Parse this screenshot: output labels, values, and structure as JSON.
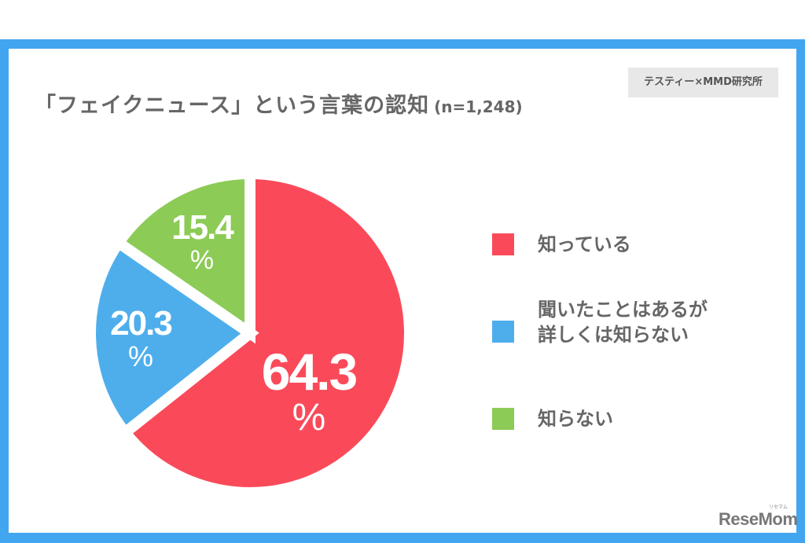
{
  "title": {
    "main": "「フェイクニュース」という言葉の認知",
    "sample": "(n=1,248)"
  },
  "source": "テスティー×MMD研究所",
  "logo": {
    "text": "ReseMom",
    "ruby": "リセマム"
  },
  "colors": {
    "frame": "#42a5f0",
    "know": "#fa4a5a",
    "heard": "#4eaeec",
    "dont_know": "#8ccb56",
    "text": "#666666"
  },
  "labels": {
    "know_value": "64.3",
    "heard_value": "20.3",
    "dont_know_value": "15.4",
    "percent": "%"
  },
  "legend": [
    {
      "label": "知っている",
      "color": "#fa4a5a"
    },
    {
      "label_line1": "聞いたことはあるが",
      "label_line2": "詳しくは知らない",
      "color": "#4eaeec"
    },
    {
      "label": "知らない",
      "color": "#8ccb56"
    }
  ],
  "chart_data": {
    "type": "pie",
    "title": "「フェイクニュース」という言葉の認知 (n=1,248)",
    "categories": [
      "知っている",
      "聞いたことはあるが詳しくは知らない",
      "知らない"
    ],
    "values": [
      64.3,
      20.3,
      15.4
    ],
    "unit": "%",
    "colors": [
      "#fa4a5a",
      "#4eaeec",
      "#8ccb56"
    ],
    "start_angle": "12 o'clock, clockwise",
    "legend_position": "right",
    "source": "テスティー×MMD研究所"
  }
}
